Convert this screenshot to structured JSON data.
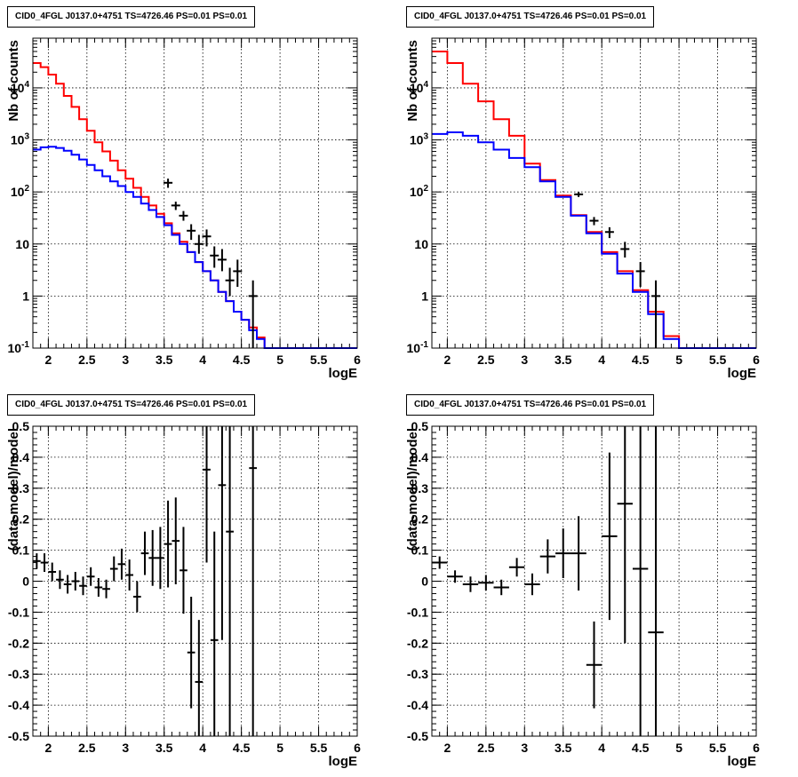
{
  "titles": {
    "tl": "CID0_4FGL J0137.0+4751 TS=4726.46 PS=0.01 PS=0.01",
    "tr": "CID0_4FGL J0137.0+4751 TS=4726.46 PS=0.01 PS=0.01",
    "bl": "CID0_4FGL J0137.0+4751 TS=4726.46 PS=0.01 PS=0.01",
    "br": "CID0_4FGL J0137.0+4751 TS=4726.46 PS=0.01 PS=0.01"
  },
  "chart_data": [
    {
      "id": "tl",
      "type": "line",
      "title": "CID0_4FGL J0137.0+4751 TS=4726.46 PS=0.01 PS=0.01",
      "xlabel": "logE",
      "ylabel": "Nb of counts",
      "xlim": [
        1.8,
        6
      ],
      "ylim": [
        0.1,
        90000
      ],
      "yscale": "log",
      "grid": true,
      "xticks": [
        "2",
        "2.5",
        "3",
        "3.5",
        "4",
        "4.5",
        "5",
        "5.5",
        "6"
      ],
      "yticks": [
        "10^-1",
        "1",
        "10",
        "10^2",
        "10^3",
        "10^4"
      ],
      "series": [
        {
          "role": "histogram",
          "color": "#ff0000",
          "edges": [
            1.8,
            1.9,
            2.0,
            2.1,
            2.2,
            2.3,
            2.4,
            2.5,
            2.6,
            2.7,
            2.8,
            2.9,
            3.0,
            3.1,
            3.2,
            3.3,
            3.4,
            3.5,
            3.6,
            3.7,
            3.8,
            3.9,
            4.0,
            4.1,
            4.2,
            4.3,
            4.4,
            4.5,
            4.6,
            4.7,
            4.8,
            4.9,
            5.0,
            5.1,
            5.2,
            6.0
          ],
          "values": [
            30000,
            25000,
            18000,
            12000,
            7000,
            4300,
            2500,
            1500,
            900,
            600,
            400,
            260,
            180,
            120,
            80,
            55,
            38,
            25,
            16,
            11,
            7,
            4.5,
            3,
            2,
            1.2,
            0.8,
            0.5,
            0.35,
            0.25,
            0.16,
            0.1,
            0.1,
            0.1,
            0.1,
            0.1
          ]
        },
        {
          "role": "histogram",
          "color": "#0000ff",
          "edges": [
            1.8,
            1.9,
            2.0,
            2.1,
            2.2,
            2.3,
            2.4,
            2.5,
            2.6,
            2.7,
            2.8,
            2.9,
            3.0,
            3.1,
            3.2,
            3.3,
            3.4,
            3.5,
            3.6,
            3.7,
            3.8,
            3.9,
            4.0,
            4.1,
            4.2,
            4.3,
            4.4,
            4.5,
            4.6,
            4.7,
            4.8,
            4.9,
            5.0,
            5.1,
            5.2,
            6.0
          ],
          "values": [
            650,
            720,
            740,
            700,
            620,
            520,
            420,
            330,
            260,
            200,
            160,
            130,
            100,
            80,
            60,
            45,
            33,
            23,
            15,
            10,
            7,
            4.5,
            3,
            2,
            1.2,
            0.8,
            0.5,
            0.35,
            0.22,
            0.15,
            0.1,
            0.1,
            0.1,
            0.1,
            0.1
          ]
        },
        {
          "role": "points",
          "color": "#000000",
          "points": [
            {
              "x": 3.55,
              "y": 150,
              "ylo": 120,
              "yhi": 180
            },
            {
              "x": 3.65,
              "y": 55,
              "ylo": 45,
              "yhi": 65
            },
            {
              "x": 3.75,
              "y": 35,
              "ylo": 28,
              "yhi": 43
            },
            {
              "x": 3.85,
              "y": 18,
              "ylo": 12,
              "yhi": 24
            },
            {
              "x": 3.95,
              "y": 10,
              "ylo": 6.5,
              "yhi": 15
            },
            {
              "x": 4.05,
              "y": 14,
              "ylo": 9,
              "yhi": 19
            },
            {
              "x": 4.15,
              "y": 6,
              "ylo": 3.5,
              "yhi": 9
            },
            {
              "x": 4.25,
              "y": 5,
              "ylo": 3,
              "yhi": 8
            },
            {
              "x": 4.35,
              "y": 2,
              "ylo": 1.0,
              "yhi": 3.5
            },
            {
              "x": 4.45,
              "y": 3,
              "ylo": 1.5,
              "yhi": 5
            },
            {
              "x": 4.65,
              "y": 1,
              "ylo": 0.1,
              "yhi": 2
            }
          ]
        }
      ]
    },
    {
      "id": "tr",
      "type": "line",
      "title": "CID0_4FGL J0137.0+4751 TS=4726.46 PS=0.01 PS=0.01",
      "xlabel": "logE",
      "ylabel": "Nb of counts",
      "xlim": [
        1.8,
        6
      ],
      "ylim": [
        0.1,
        90000
      ],
      "yscale": "log",
      "grid": true,
      "xticks": [
        "2",
        "2.5",
        "3",
        "3.5",
        "4",
        "4.5",
        "5",
        "5.5",
        "6"
      ],
      "yticks": [
        "10^-1",
        "1",
        "10",
        "10^2",
        "10^3",
        "10^4"
      ],
      "series": [
        {
          "role": "histogram",
          "color": "#ff0000",
          "edges": [
            1.8,
            2.0,
            2.2,
            2.4,
            2.6,
            2.8,
            3.0,
            3.2,
            3.4,
            3.6,
            3.8,
            4.0,
            4.2,
            4.4,
            4.6,
            4.8,
            5.0,
            5.2,
            6.0
          ],
          "values": [
            50000,
            30000,
            12000,
            5500,
            2500,
            1200,
            350,
            170,
            85,
            36,
            17,
            7,
            3,
            1.3,
            0.5,
            0.17,
            0.1,
            0.1
          ]
        },
        {
          "role": "histogram",
          "color": "#0000ff",
          "edges": [
            1.8,
            2.0,
            2.2,
            2.4,
            2.6,
            2.8,
            3.0,
            3.2,
            3.4,
            3.6,
            3.8,
            4.0,
            4.2,
            4.4,
            4.6,
            4.8,
            5.0,
            5.2,
            6.0
          ],
          "values": [
            1300,
            1400,
            1200,
            900,
            650,
            450,
            300,
            160,
            80,
            35,
            16,
            6.5,
            2.7,
            1.2,
            0.45,
            0.15,
            0.1,
            0.1
          ]
        },
        {
          "role": "points",
          "color": "#000000",
          "points": [
            {
              "x": 3.7,
              "y": 90,
              "ylo": 80,
              "yhi": 100
            },
            {
              "x": 3.9,
              "y": 28,
              "ylo": 23,
              "yhi": 33
            },
            {
              "x": 4.1,
              "y": 17,
              "ylo": 13,
              "yhi": 21
            },
            {
              "x": 4.3,
              "y": 8,
              "ylo": 5.5,
              "yhi": 11
            },
            {
              "x": 4.5,
              "y": 3,
              "ylo": 1.5,
              "yhi": 4.5
            },
            {
              "x": 4.7,
              "y": 1,
              "ylo": 0.1,
              "yhi": 2
            }
          ]
        }
      ]
    },
    {
      "id": "bl",
      "type": "scatter",
      "title": "CID0_4FGL J0137.0+4751 TS=4726.46 PS=0.01 PS=0.01",
      "xlabel": "logE",
      "ylabel": "(data-model)/model",
      "xlim": [
        1.8,
        6
      ],
      "ylim": [
        -0.5,
        0.5
      ],
      "grid": true,
      "xticks": [
        "2",
        "2.5",
        "3",
        "3.5",
        "4",
        "4.5",
        "5",
        "5.5",
        "6"
      ],
      "yticks": [
        "-0.5",
        "-0.4",
        "-0.3",
        "-0.2",
        "-0.1",
        "0",
        "0.1",
        "0.2",
        "0.3",
        "0.4",
        "0.5"
      ],
      "xhalfwidth": 0.05,
      "points": [
        {
          "x": 1.85,
          "y": 0.065,
          "err": 0.025
        },
        {
          "x": 1.95,
          "y": 0.06,
          "err": 0.03
        },
        {
          "x": 2.05,
          "y": 0.03,
          "err": 0.03
        },
        {
          "x": 2.15,
          "y": 0.005,
          "err": 0.03
        },
        {
          "x": 2.25,
          "y": -0.01,
          "err": 0.03
        },
        {
          "x": 2.35,
          "y": 0.0,
          "err": 0.03
        },
        {
          "x": 2.45,
          "y": -0.015,
          "err": 0.03
        },
        {
          "x": 2.55,
          "y": 0.015,
          "err": 0.03
        },
        {
          "x": 2.65,
          "y": -0.02,
          "err": 0.03
        },
        {
          "x": 2.75,
          "y": -0.025,
          "err": 0.03
        },
        {
          "x": 2.85,
          "y": 0.04,
          "err": 0.04
        },
        {
          "x": 2.95,
          "y": 0.055,
          "err": 0.05
        },
        {
          "x": 3.05,
          "y": 0.02,
          "err": 0.05
        },
        {
          "x": 3.15,
          "y": -0.05,
          "err": 0.05
        },
        {
          "x": 3.25,
          "y": 0.09,
          "err": 0.07
        },
        {
          "x": 3.35,
          "y": 0.075,
          "err": 0.09
        },
        {
          "x": 3.45,
          "y": 0.075,
          "err": 0.1
        },
        {
          "x": 3.55,
          "y": 0.12,
          "err": 0.14
        },
        {
          "x": 3.65,
          "y": 0.13,
          "err": 0.14
        },
        {
          "x": 3.75,
          "y": 0.035,
          "err": 0.14
        },
        {
          "x": 3.85,
          "y": -0.23,
          "err": 0.18
        },
        {
          "x": 3.95,
          "y": -0.325,
          "err": 0.2
        },
        {
          "x": 4.05,
          "y": 0.36,
          "err": 0.3
        },
        {
          "x": 4.15,
          "y": -0.19,
          "err": 0.35
        },
        {
          "x": 4.25,
          "y": 0.31,
          "err": 0.5
        },
        {
          "x": 4.35,
          "y": 0.16,
          "err": 0.7
        },
        {
          "x": 4.65,
          "y": 0.365,
          "err": 1.0
        }
      ]
    },
    {
      "id": "br",
      "type": "scatter",
      "title": "CID0_4FGL J0137.0+4751 TS=4726.46 PS=0.01 PS=0.01",
      "xlabel": "logE",
      "ylabel": "(data-model)/model",
      "xlim": [
        1.8,
        6
      ],
      "ylim": [
        -0.5,
        0.5
      ],
      "grid": true,
      "xticks": [
        "2",
        "2.5",
        "3",
        "3.5",
        "4",
        "4.5",
        "5",
        "5.5",
        "6"
      ],
      "yticks": [
        "-0.5",
        "-0.4",
        "-0.3",
        "-0.2",
        "-0.1",
        "0",
        "0.1",
        "0.2",
        "0.3",
        "0.4",
        "0.5"
      ],
      "xhalfwidth": 0.1,
      "points": [
        {
          "x": 1.9,
          "y": 0.06,
          "err": 0.02
        },
        {
          "x": 2.1,
          "y": 0.015,
          "err": 0.02
        },
        {
          "x": 2.3,
          "y": -0.01,
          "err": 0.025
        },
        {
          "x": 2.5,
          "y": -0.005,
          "err": 0.025
        },
        {
          "x": 2.7,
          "y": -0.02,
          "err": 0.025
        },
        {
          "x": 2.9,
          "y": 0.045,
          "err": 0.03
        },
        {
          "x": 3.1,
          "y": -0.01,
          "err": 0.035
        },
        {
          "x": 3.3,
          "y": 0.08,
          "err": 0.055
        },
        {
          "x": 3.5,
          "y": 0.09,
          "err": 0.08
        },
        {
          "x": 3.7,
          "y": 0.09,
          "err": 0.12
        },
        {
          "x": 3.9,
          "y": -0.27,
          "err": 0.14
        },
        {
          "x": 4.1,
          "y": 0.145,
          "err": 0.27
        },
        {
          "x": 4.3,
          "y": 0.25,
          "err": 0.45
        },
        {
          "x": 4.5,
          "y": 0.04,
          "err": 0.7
        },
        {
          "x": 4.7,
          "y": -0.165,
          "err": 1.0
        }
      ]
    }
  ]
}
